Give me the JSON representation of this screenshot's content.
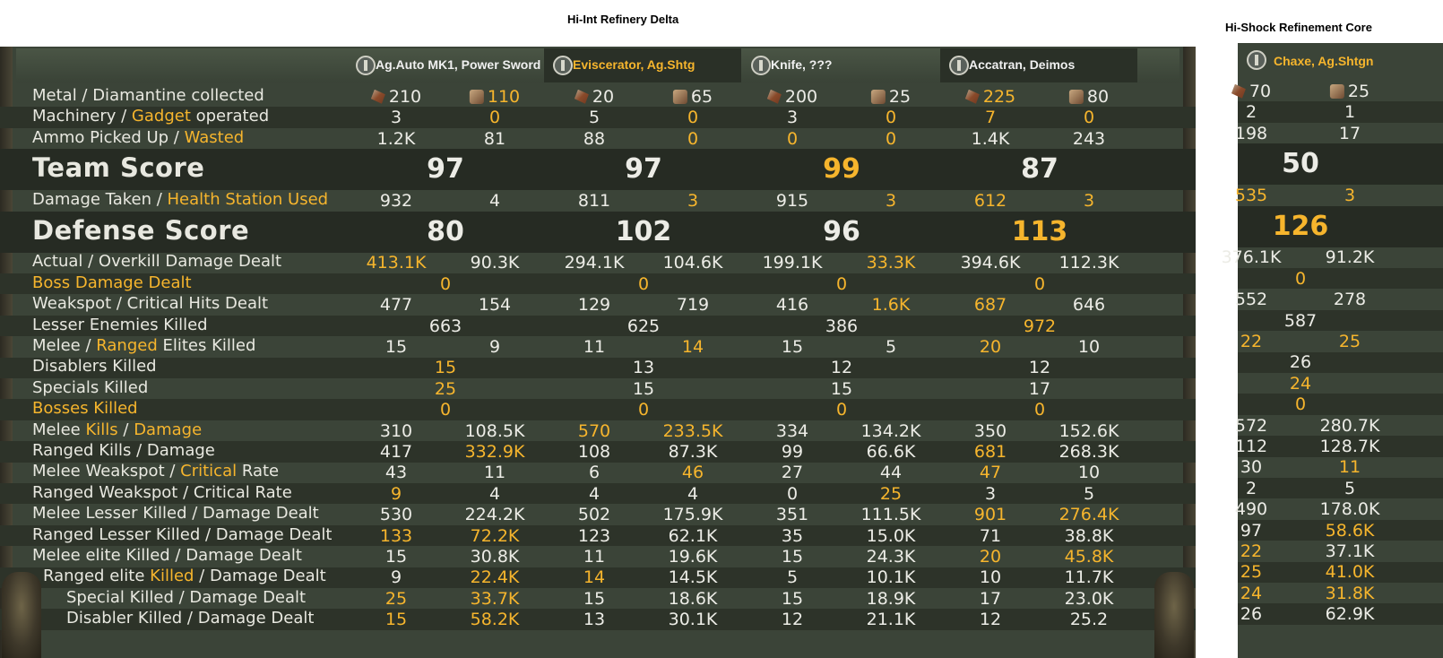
{
  "titles": {
    "left": "Hi-Int Refinery Delta",
    "right": "Hi-Shock Refinement Core"
  },
  "players": [
    {
      "name": "Ag.Auto MK1, Power Sword",
      "icon": "skull-gear-icon",
      "name_highlight": false
    },
    {
      "name": "Eviscerator, Ag.Shtg",
      "icon": "zealot-icon",
      "name_highlight": true
    },
    {
      "name": "Knife, ???",
      "icon": "zealot-icon",
      "name_highlight": false
    },
    {
      "name": "Accatran, Deimos",
      "icon": "eagle-icon",
      "name_highlight": false
    }
  ],
  "solo_player": {
    "name": "Chaxe, Ag.Shtgn",
    "icon": "zealot-icon",
    "name_highlight": true
  },
  "rows": [
    {
      "id": "metal",
      "label": [
        {
          "t": "Metal / Diamantine collected"
        }
      ],
      "big": false,
      "cells": [
        {
          "v": "210",
          "icon": "metal"
        },
        {
          "v": "110",
          "icon": "diam",
          "h": true
        },
        {
          "v": "20",
          "icon": "metal"
        },
        {
          "v": "65",
          "icon": "diam"
        },
        {
          "v": "200",
          "icon": "metal"
        },
        {
          "v": "25",
          "icon": "diam"
        },
        {
          "v": "225",
          "icon": "metal",
          "h": true
        },
        {
          "v": "80",
          "icon": "diam"
        }
      ],
      "solo": [
        {
          "v": "70",
          "icon": "metal"
        },
        {
          "v": "25",
          "icon": "diam"
        }
      ]
    },
    {
      "id": "machinery",
      "label": [
        {
          "t": "Machinery / "
        },
        {
          "t": "Gadget",
          "h": true
        },
        {
          "t": " operated"
        }
      ],
      "big": false,
      "cells": [
        {
          "v": "3"
        },
        {
          "v": "0",
          "h": true
        },
        {
          "v": "5"
        },
        {
          "v": "0",
          "h": true
        },
        {
          "v": "3"
        },
        {
          "v": "0",
          "h": true
        },
        {
          "v": "7",
          "h": true
        },
        {
          "v": "0",
          "h": true
        }
      ],
      "solo": [
        {
          "v": "2"
        },
        {
          "v": "1"
        }
      ]
    },
    {
      "id": "ammo",
      "label": [
        {
          "t": "Ammo Picked Up / "
        },
        {
          "t": "Wasted",
          "h": true
        }
      ],
      "big": false,
      "cells": [
        {
          "v": "1.2K"
        },
        {
          "v": "81"
        },
        {
          "v": "88"
        },
        {
          "v": "0",
          "h": true
        },
        {
          "v": "0",
          "h": true
        },
        {
          "v": "0",
          "h": true
        },
        {
          "v": "1.4K"
        },
        {
          "v": "243"
        }
      ],
      "solo": [
        {
          "v": "198"
        },
        {
          "v": "17"
        }
      ]
    },
    {
      "id": "team_score",
      "label": [
        {
          "t": "Team Score"
        }
      ],
      "big": true,
      "merged": [
        {
          "v": "97"
        },
        {
          "v": "97"
        },
        {
          "v": "99",
          "h": true
        },
        {
          "v": "87"
        }
      ],
      "solo_merged": {
        "v": "50"
      }
    },
    {
      "id": "damage_taken",
      "label": [
        {
          "t": "Damage Taken / "
        },
        {
          "t": "Health Station Used",
          "h": true
        }
      ],
      "big": false,
      "cells": [
        {
          "v": "932"
        },
        {
          "v": "4"
        },
        {
          "v": "811"
        },
        {
          "v": "3",
          "h": true
        },
        {
          "v": "915"
        },
        {
          "v": "3",
          "h": true
        },
        {
          "v": "612",
          "h": true
        },
        {
          "v": "3",
          "h": true
        }
      ],
      "solo": [
        {
          "v": "535",
          "h": true
        },
        {
          "v": "3",
          "h": true
        }
      ]
    },
    {
      "id": "defense_score",
      "label": [
        {
          "t": "Defense Score"
        }
      ],
      "big": true,
      "merged": [
        {
          "v": "80"
        },
        {
          "v": "102"
        },
        {
          "v": "96"
        },
        {
          "v": "113",
          "h": true
        }
      ],
      "solo_merged": {
        "v": "126",
        "h": true
      }
    },
    {
      "id": "actual_overkill",
      "label": [
        {
          "t": "Actual / Overkill Damage Dealt"
        }
      ],
      "big": false,
      "cells": [
        {
          "v": "413.1K",
          "h": true
        },
        {
          "v": "90.3K"
        },
        {
          "v": "294.1K"
        },
        {
          "v": "104.6K"
        },
        {
          "v": "199.1K"
        },
        {
          "v": "33.3K",
          "h": true
        },
        {
          "v": "394.6K"
        },
        {
          "v": "112.3K"
        }
      ],
      "solo": [
        {
          "v": "376.1K"
        },
        {
          "v": "91.2K"
        }
      ]
    },
    {
      "id": "boss_damage",
      "label": [
        {
          "t": "Boss Damage Dealt",
          "h": true
        }
      ],
      "big": false,
      "merged": [
        {
          "v": "0",
          "h": true
        },
        {
          "v": "0",
          "h": true
        },
        {
          "v": "0",
          "h": true
        },
        {
          "v": "0",
          "h": true
        }
      ],
      "solo_merged": {
        "v": "0",
        "h": true
      }
    },
    {
      "id": "weakspot_crit",
      "label": [
        {
          "t": "Weakspot / Critical Hits Dealt"
        }
      ],
      "big": false,
      "cells": [
        {
          "v": "477"
        },
        {
          "v": "154"
        },
        {
          "v": "129"
        },
        {
          "v": "719"
        },
        {
          "v": "416"
        },
        {
          "v": "1.6K",
          "h": true
        },
        {
          "v": "687",
          "h": true
        },
        {
          "v": "646"
        }
      ],
      "solo": [
        {
          "v": "552"
        },
        {
          "v": "278"
        }
      ]
    },
    {
      "id": "lesser_killed",
      "label": [
        {
          "t": "Lesser Enemies Killed"
        }
      ],
      "big": false,
      "merged": [
        {
          "v": "663"
        },
        {
          "v": "625"
        },
        {
          "v": "386"
        },
        {
          "v": "972",
          "h": true
        }
      ],
      "solo_merged": {
        "v": "587"
      }
    },
    {
      "id": "elites_killed",
      "label": [
        {
          "t": "Melee / "
        },
        {
          "t": "Ranged",
          "h": true
        },
        {
          "t": " Elites Killed"
        }
      ],
      "big": false,
      "cells": [
        {
          "v": "15"
        },
        {
          "v": "9"
        },
        {
          "v": "11"
        },
        {
          "v": "14",
          "h": true
        },
        {
          "v": "15"
        },
        {
          "v": "5"
        },
        {
          "v": "20",
          "h": true
        },
        {
          "v": "10"
        }
      ],
      "solo": [
        {
          "v": "22",
          "h": true
        },
        {
          "v": "25",
          "h": true
        }
      ]
    },
    {
      "id": "disablers",
      "label": [
        {
          "t": "Disablers Killed"
        }
      ],
      "big": false,
      "merged": [
        {
          "v": "15",
          "h": true
        },
        {
          "v": "13"
        },
        {
          "v": "12"
        },
        {
          "v": "12"
        }
      ],
      "solo_merged": {
        "v": "26"
      }
    },
    {
      "id": "specials",
      "label": [
        {
          "t": "Specials Killed"
        }
      ],
      "big": false,
      "merged": [
        {
          "v": "25",
          "h": true
        },
        {
          "v": "15"
        },
        {
          "v": "15"
        },
        {
          "v": "17"
        }
      ],
      "solo_merged": {
        "v": "24",
        "h": true
      }
    },
    {
      "id": "bosses",
      "label": [
        {
          "t": "Bosses Killed",
          "h": true
        }
      ],
      "big": false,
      "merged": [
        {
          "v": "0",
          "h": true
        },
        {
          "v": "0",
          "h": true
        },
        {
          "v": "0",
          "h": true
        },
        {
          "v": "0",
          "h": true
        }
      ],
      "solo_merged": {
        "v": "0",
        "h": true
      }
    },
    {
      "id": "melee_kd",
      "label": [
        {
          "t": "Melee "
        },
        {
          "t": "Kills",
          "h": true
        },
        {
          "t": " / "
        },
        {
          "t": "Damage",
          "h": true
        }
      ],
      "big": false,
      "cells": [
        {
          "v": "310"
        },
        {
          "v": "108.5K"
        },
        {
          "v": "570",
          "h": true
        },
        {
          "v": "233.5K",
          "h": true
        },
        {
          "v": "334"
        },
        {
          "v": "134.2K"
        },
        {
          "v": "350"
        },
        {
          "v": "152.6K"
        }
      ],
      "solo": [
        {
          "v": "572"
        },
        {
          "v": "280.7K"
        }
      ]
    },
    {
      "id": "ranged_kd",
      "label": [
        {
          "t": "Ranged Kills / Damage"
        }
      ],
      "big": false,
      "cells": [
        {
          "v": "417"
        },
        {
          "v": "332.9K",
          "h": true
        },
        {
          "v": "108"
        },
        {
          "v": "87.3K"
        },
        {
          "v": "99"
        },
        {
          "v": "66.6K"
        },
        {
          "v": "681",
          "h": true
        },
        {
          "v": "268.3K"
        }
      ],
      "solo": [
        {
          "v": "112"
        },
        {
          "v": "128.7K"
        }
      ]
    },
    {
      "id": "melee_ws",
      "label": [
        {
          "t": "Melee Weakspot / "
        },
        {
          "t": "Critical",
          "h": true
        },
        {
          "t": " Rate"
        }
      ],
      "big": false,
      "cells": [
        {
          "v": "43"
        },
        {
          "v": "11"
        },
        {
          "v": "6"
        },
        {
          "v": "46",
          "h": true
        },
        {
          "v": "27"
        },
        {
          "v": "44"
        },
        {
          "v": "47",
          "h": true
        },
        {
          "v": "10"
        }
      ],
      "solo": [
        {
          "v": "30"
        },
        {
          "v": "11",
          "h": true
        }
      ]
    },
    {
      "id": "ranged_ws",
      "label": [
        {
          "t": "Ranged Weakspot / Critical Rate"
        }
      ],
      "big": false,
      "cells": [
        {
          "v": "9",
          "h": true
        },
        {
          "v": "4"
        },
        {
          "v": "4"
        },
        {
          "v": "4"
        },
        {
          "v": "0"
        },
        {
          "v": "25",
          "h": true
        },
        {
          "v": "3"
        },
        {
          "v": "5"
        }
      ],
      "solo": [
        {
          "v": "2"
        },
        {
          "v": "5"
        }
      ]
    },
    {
      "id": "melee_lesser",
      "label": [
        {
          "t": "Melee Lesser Killed / Damage Dealt"
        }
      ],
      "big": false,
      "cells": [
        {
          "v": "530"
        },
        {
          "v": "224.2K"
        },
        {
          "v": "502"
        },
        {
          "v": "175.9K"
        },
        {
          "v": "351"
        },
        {
          "v": "111.5K"
        },
        {
          "v": "901",
          "h": true
        },
        {
          "v": "276.4K",
          "h": true
        }
      ],
      "solo": [
        {
          "v": "490"
        },
        {
          "v": "178.0K"
        }
      ]
    },
    {
      "id": "ranged_lesser",
      "label": [
        {
          "t": "Ranged Lesser Killed / Damage Dealt"
        }
      ],
      "big": false,
      "cells": [
        {
          "v": "133",
          "h": true
        },
        {
          "v": "72.2K",
          "h": true
        },
        {
          "v": "123"
        },
        {
          "v": "62.1K"
        },
        {
          "v": "35"
        },
        {
          "v": "15.0K"
        },
        {
          "v": "71"
        },
        {
          "v": "38.8K"
        }
      ],
      "solo": [
        {
          "v": "97"
        },
        {
          "v": "58.6K",
          "h": true
        }
      ]
    },
    {
      "id": "melee_elite",
      "label": [
        {
          "t": "Melee elite Killed / Damage Dealt"
        }
      ],
      "big": false,
      "cells": [
        {
          "v": "15"
        },
        {
          "v": "30.8K"
        },
        {
          "v": "11"
        },
        {
          "v": "19.6K"
        },
        {
          "v": "15"
        },
        {
          "v": "24.3K"
        },
        {
          "v": "20",
          "h": true
        },
        {
          "v": "45.8K",
          "h": true
        }
      ],
      "solo": [
        {
          "v": "22",
          "h": true
        },
        {
          "v": "37.1K"
        }
      ]
    },
    {
      "id": "ranged_elite",
      "label": [
        {
          "t": "Ranged elite "
        },
        {
          "t": "Killed",
          "h": true
        },
        {
          "t": " / Damage Dealt"
        }
      ],
      "big": false,
      "cells": [
        {
          "v": "9"
        },
        {
          "v": "22.4K",
          "h": true
        },
        {
          "v": "14",
          "h": true
        },
        {
          "v": "14.5K"
        },
        {
          "v": "5"
        },
        {
          "v": "10.1K"
        },
        {
          "v": "10"
        },
        {
          "v": "11.7K"
        }
      ],
      "solo": [
        {
          "v": "25",
          "h": true
        },
        {
          "v": "41.0K",
          "h": true
        }
      ]
    },
    {
      "id": "special_dmg",
      "label": [
        {
          "t": "Special Killed / Damage Dealt"
        }
      ],
      "big": false,
      "cells": [
        {
          "v": "25",
          "h": true
        },
        {
          "v": "33.7K",
          "h": true
        },
        {
          "v": "15"
        },
        {
          "v": "18.6K"
        },
        {
          "v": "15"
        },
        {
          "v": "18.9K"
        },
        {
          "v": "17"
        },
        {
          "v": "23.0K"
        }
      ],
      "solo": [
        {
          "v": "24",
          "h": true
        },
        {
          "v": "31.8K",
          "h": true
        }
      ]
    },
    {
      "id": "disabler_dmg",
      "label": [
        {
          "t": "Disabler Killed / Damage Dealt"
        }
      ],
      "big": false,
      "cells": [
        {
          "v": "15",
          "h": true
        },
        {
          "v": "58.2K",
          "h": true
        },
        {
          "v": "13"
        },
        {
          "v": "30.1K"
        },
        {
          "v": "12"
        },
        {
          "v": "21.1K"
        },
        {
          "v": "12"
        },
        {
          "v": "25.2"
        }
      ],
      "solo": [
        {
          "v": "26"
        },
        {
          "v": "62.9K"
        }
      ]
    }
  ]
}
